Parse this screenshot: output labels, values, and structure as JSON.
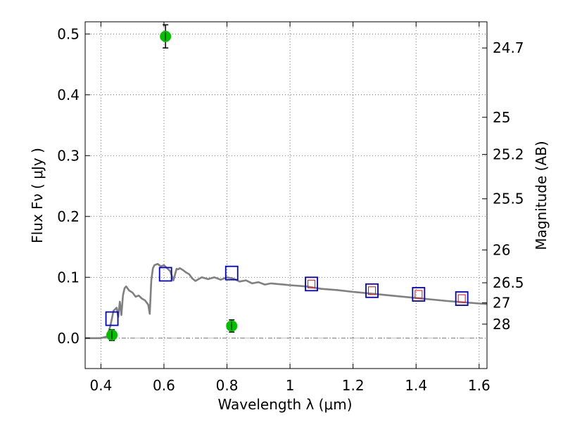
{
  "chart_data": {
    "type": "scatter",
    "xlabel": "Wavelength  λ (μm)",
    "ylabel": "Flux  Fν  ( μJy )",
    "y2label": "Magnitude (AB)",
    "xlim": [
      0.35,
      1.625
    ],
    "ylim": [
      -0.05,
      0.52
    ],
    "x_ticks": [
      0.4,
      0.6,
      0.8,
      1.0,
      1.2,
      1.4,
      1.6
    ],
    "x_tick_labels": [
      "0.4",
      "0.6",
      "0.8",
      "1",
      "1.2",
      "1.4",
      "1.6"
    ],
    "y_ticks": [
      0.0,
      0.1,
      0.2,
      0.3,
      0.4,
      0.5
    ],
    "y_tick_labels": [
      "0.0",
      "0.1",
      "0.2",
      "0.3",
      "0.4",
      "0.5"
    ],
    "magnitude_ticks": [
      {
        "label": "24.7",
        "flux": 0.477
      },
      {
        "label": "25",
        "flux": 0.363
      },
      {
        "label": "25.2",
        "flux": 0.302
      },
      {
        "label": "25.5",
        "flux": 0.229
      },
      {
        "label": "26",
        "flux": 0.145
      },
      {
        "label": "26.5",
        "flux": 0.091
      },
      {
        "label": "27",
        "flux": 0.058
      },
      {
        "label": "28",
        "flux": 0.023
      }
    ],
    "grid": true,
    "colors": {
      "model": "#808080",
      "observed": "#00c000",
      "model_photometry": "#0000cc",
      "model_photometry_inner": "#ff0000",
      "grid": "#555555"
    },
    "series": [
      {
        "kind": "line",
        "x": [
          0.35,
          0.4,
          0.42,
          0.43,
          0.44,
          0.45,
          0.455,
          0.46,
          0.465,
          0.47,
          0.475,
          0.48,
          0.49,
          0.5,
          0.51,
          0.52,
          0.53,
          0.54,
          0.55,
          0.555,
          0.56,
          0.565,
          0.57,
          0.58,
          0.59,
          0.6,
          0.62,
          0.63,
          0.64,
          0.645,
          0.65,
          0.66,
          0.67,
          0.68,
          0.69,
          0.7,
          0.72,
          0.74,
          0.76,
          0.78,
          0.8,
          0.82,
          0.84,
          0.86,
          0.88,
          0.9,
          0.92,
          0.94,
          0.96,
          0.98,
          1.0,
          1.05,
          1.1,
          1.15,
          1.2,
          1.3,
          1.4,
          1.5,
          1.6,
          1.625
        ],
        "y": [
          0.0,
          0.0,
          0.003,
          0.02,
          0.045,
          0.05,
          0.035,
          0.06,
          0.038,
          0.07,
          0.082,
          0.085,
          0.078,
          0.075,
          0.068,
          0.07,
          0.065,
          0.062,
          0.055,
          0.04,
          0.095,
          0.115,
          0.12,
          0.122,
          0.118,
          0.12,
          0.11,
          0.095,
          0.114,
          0.113,
          0.115,
          0.112,
          0.108,
          0.105,
          0.098,
          0.094,
          0.1,
          0.097,
          0.1,
          0.096,
          0.1,
          0.098,
          0.093,
          0.095,
          0.09,
          0.092,
          0.088,
          0.09,
          0.089,
          0.088,
          0.087,
          0.085,
          0.081,
          0.079,
          0.076,
          0.071,
          0.066,
          0.061,
          0.057,
          0.056
        ]
      },
      {
        "kind": "squares",
        "x": [
          0.435,
          0.605,
          0.815,
          1.068,
          1.26,
          1.408,
          1.545
        ],
        "y": [
          0.032,
          0.105,
          0.107,
          0.089,
          0.078,
          0.072,
          0.065
        ]
      },
      {
        "kind": "points",
        "x": [
          0.435,
          0.605,
          0.815
        ],
        "y": [
          0.005,
          0.496,
          0.02
        ],
        "yerr": [
          0.009,
          0.019,
          0.01
        ]
      }
    ]
  }
}
